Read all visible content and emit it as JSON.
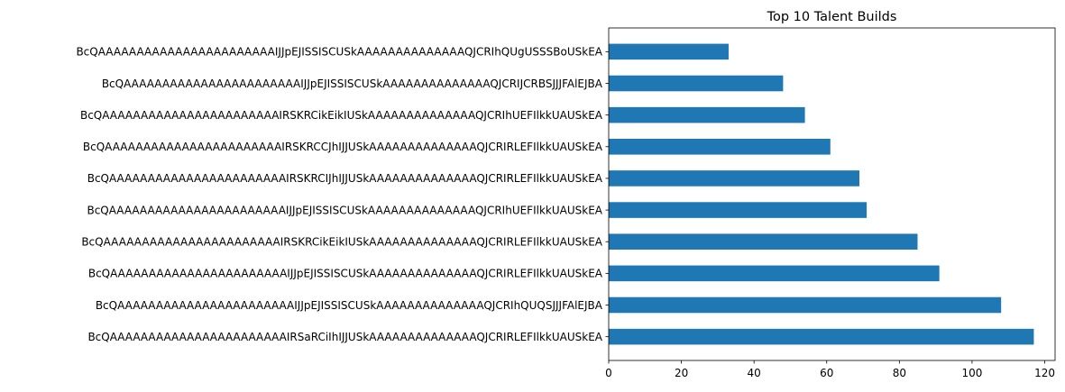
{
  "chart_data": {
    "type": "bar",
    "orientation": "horizontal",
    "title": "Top 10 Talent Builds",
    "xlabel": "",
    "ylabel": "",
    "xlim": [
      0,
      122.85
    ],
    "xticks": [
      0,
      20,
      40,
      60,
      80,
      100,
      120
    ],
    "grid": false,
    "bar_color": "#1f77b4",
    "categories": [
      "BcQAAAAAAAAAAAAAAAAAAAAAAAIRSaRCiIhIJJUSkAAAAAAAAAAAAAAQJCRIRLEFIlkkUAUSkEA",
      "BcQAAAAAAAAAAAAAAAAAAAAAAAIJJpEJISSISCUSkAAAAAAAAAAAAAAQJCRIhQUQSJJJFAlEJBA",
      "BcQAAAAAAAAAAAAAAAAAAAAAAAIJJpEJISSISCUSkAAAAAAAAAAAAAAQJCRIRLEFIlkkUAUSkEA",
      "BcQAAAAAAAAAAAAAAAAAAAAAAAIRSKRCikEikIUSkAAAAAAAAAAAAAAQJCRIRLEFIlkkUAUSkEA",
      "BcQAAAAAAAAAAAAAAAAAAAAAAAIJJpEJISSISCUSkAAAAAAAAAAAAAAQJCRIhUEFIlkkUAUSkEA",
      "BcQAAAAAAAAAAAAAAAAAAAAAAAIRSKRCIJhIJJUSkAAAAAAAAAAAAAAQJCRIRLEFIlkkUAUSkEA",
      "BcQAAAAAAAAAAAAAAAAAAAAAAAIRSKRCCJhIJJUSkAAAAAAAAAAAAAAQJCRIRLEFIlkkUAUSkEA",
      "BcQAAAAAAAAAAAAAAAAAAAAAAAIRSKRCikEikIUSkAAAAAAAAAAAAAAQJCRIhUEFIlkkUAUSkEA",
      "BcQAAAAAAAAAAAAAAAAAAAAAAAIJJpEJISSISCUSkAAAAAAAAAAAAAAQJCRIJCRBSJJJFAlEJBA",
      "BcQAAAAAAAAAAAAAAAAAAAAAAAIJJpEJISSISCUSkAAAAAAAAAAAAAAQJCRIhQUgUSSSBoUSkEA"
    ],
    "values": [
      117,
      108,
      91,
      85,
      71,
      69,
      61,
      54,
      48,
      33
    ]
  }
}
